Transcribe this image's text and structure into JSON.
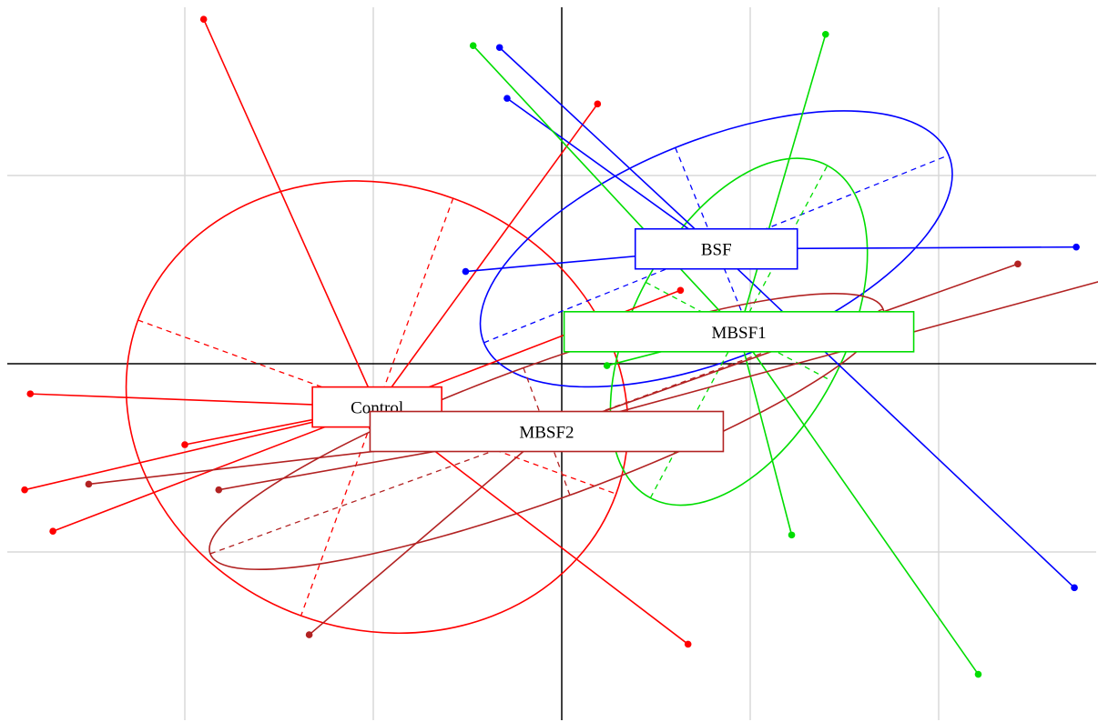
{
  "chart_data": {
    "type": "scatter",
    "description_free": true,
    "xlim": [
      -3,
      2.9
    ],
    "ylim": [
      -1.9,
      1.9
    ],
    "grid": true,
    "grid_x": [
      -2,
      -1,
      0,
      1,
      2
    ],
    "grid_y": [
      -1,
      0,
      1
    ],
    "groups": [
      {
        "name": "Control",
        "color": "#ff0000",
        "centroid": [
          -0.98,
          -0.23
        ],
        "ellipse": {
          "rx": 1.35,
          "ry": 1.18,
          "angle_deg": -20
        },
        "points": [
          [
            -1.9,
            1.83
          ],
          [
            0.19,
            1.38
          ],
          [
            0.63,
            0.39
          ],
          [
            -2.82,
            -0.16
          ],
          [
            -2.85,
            -0.67
          ],
          [
            -2.7,
            -0.89
          ],
          [
            -2.0,
            -0.43
          ],
          [
            0.67,
            -1.49
          ]
        ]
      },
      {
        "name": "BSF",
        "color": "#0000ff",
        "centroid": [
          0.82,
          0.61
        ],
        "ellipse": {
          "rx": 1.33,
          "ry": 0.58,
          "angle_deg": 22
        },
        "points": [
          [
            -0.33,
            1.68
          ],
          [
            -0.29,
            1.41
          ],
          [
            -0.51,
            0.49
          ],
          [
            2.73,
            0.62
          ],
          [
            2.72,
            -1.19
          ]
        ]
      },
      {
        "name": "MBSF1",
        "color": "#00dd00",
        "centroid": [
          0.94,
          0.17
        ],
        "ellipse": {
          "rx": 1.0,
          "ry": 0.56,
          "angle_deg": 62
        },
        "points": [
          [
            -0.47,
            1.69
          ],
          [
            1.4,
            1.75
          ],
          [
            0.24,
            -0.01
          ],
          [
            1.22,
            -0.91
          ],
          [
            2.21,
            -1.65
          ]
        ]
      },
      {
        "name": "MBSF2",
        "color": "#b22222",
        "centroid": [
          -0.08,
          -0.36
        ],
        "ellipse": {
          "rx": 1.9,
          "ry": 0.36,
          "angle_deg": 20
        },
        "points": [
          [
            2.42,
            0.53
          ],
          [
            2.9,
            0.45
          ],
          [
            -2.51,
            -0.64
          ],
          [
            -1.82,
            -0.67
          ],
          [
            -1.34,
            -1.44
          ]
        ]
      }
    ]
  }
}
